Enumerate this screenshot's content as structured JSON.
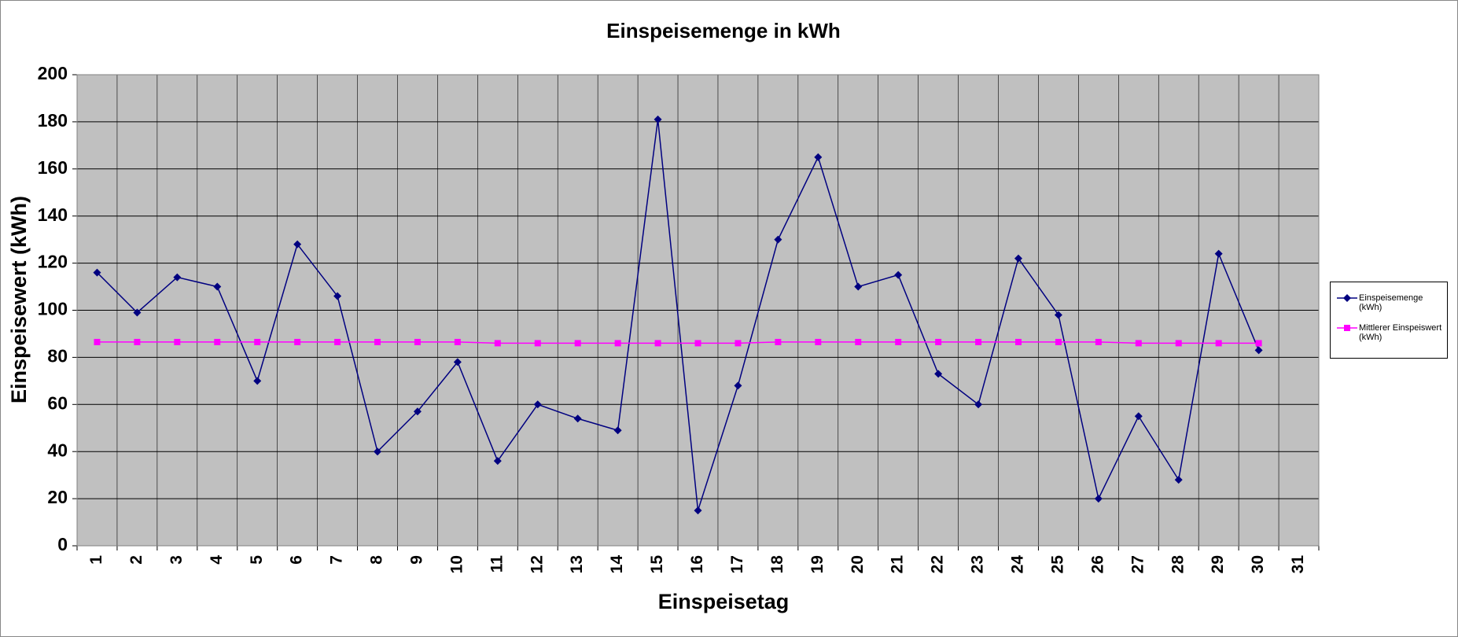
{
  "chart_data": {
    "type": "line",
    "title": "Einspeisemenge in kWh",
    "x_label": "Einspeisetag",
    "y_label": "Einspeisewert  (kWh)",
    "categories": [
      "1",
      "2",
      "3",
      "4",
      "5",
      "6",
      "7",
      "8",
      "9",
      "10",
      "11",
      "12",
      "13",
      "14",
      "15",
      "16",
      "17",
      "18",
      "19",
      "20",
      "21",
      "22",
      "23",
      "24",
      "25",
      "26",
      "27",
      "28",
      "29",
      "30",
      "31"
    ],
    "series": [
      {
        "name": "Einspeisemenge (kWh)",
        "color": "#000080",
        "marker": "diamond",
        "values": [
          116,
          99,
          114,
          110,
          70,
          128,
          106,
          40,
          57,
          78,
          36,
          60,
          54,
          49,
          181,
          15,
          68,
          130,
          165,
          110,
          115,
          73,
          60,
          122,
          98,
          20,
          55,
          28,
          124,
          83,
          null
        ]
      },
      {
        "name": "Mittlerer Einspeiswert (kWh)",
        "color": "#ff00ff",
        "marker": "square",
        "values": [
          86.5,
          86.5,
          86.5,
          86.5,
          86.5,
          86.5,
          86.5,
          86.5,
          86.5,
          86.5,
          86,
          86,
          86,
          86,
          86,
          86,
          86,
          86.5,
          86.5,
          86.5,
          86.5,
          86.5,
          86.5,
          86.5,
          86.5,
          86.5,
          86,
          86,
          86,
          86,
          null
        ]
      }
    ],
    "ylim": [
      0,
      200
    ],
    "yticks": [
      0,
      20,
      40,
      60,
      80,
      100,
      120,
      140,
      160,
      180,
      200
    ],
    "grid": true,
    "legend": "right"
  }
}
